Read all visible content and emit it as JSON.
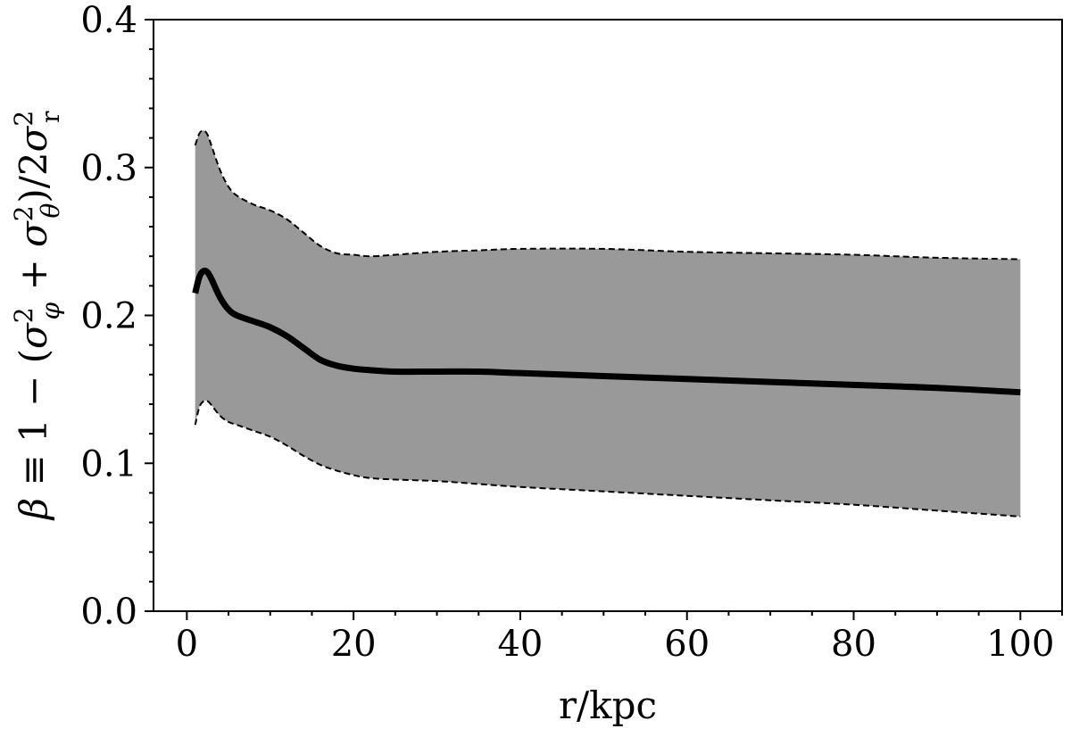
{
  "chart_data": {
    "type": "line",
    "xlabel": "r/kpc",
    "ylabel": "β ≡ 1 − (σ²_φ + σ²_θ)/2σ²_r",
    "xlim": [
      -4,
      105
    ],
    "ylim": [
      0.0,
      0.4
    ],
    "xticks": [
      0,
      20,
      40,
      60,
      80,
      100
    ],
    "xtick_labels": [
      "0",
      "20",
      "40",
      "60",
      "80",
      "100"
    ],
    "yticks": [
      0.0,
      0.1,
      0.2,
      0.3,
      0.4
    ],
    "ytick_labels": [
      "0.0",
      "0.1",
      "0.2",
      "0.3",
      "0.4"
    ],
    "grid": false,
    "band_color": "#999999",
    "line_color": "#000000",
    "series": [
      {
        "style": "solid-thick",
        "x": [
          1,
          1.5,
          2,
          2.5,
          3,
          4,
          5,
          6,
          8,
          10,
          12,
          14,
          16,
          18,
          20,
          22,
          25,
          30,
          35,
          40,
          50,
          60,
          70,
          80,
          90,
          100
        ],
        "y": [
          0.215,
          0.226,
          0.23,
          0.229,
          0.224,
          0.212,
          0.204,
          0.2,
          0.196,
          0.192,
          0.186,
          0.178,
          0.17,
          0.166,
          0.164,
          0.163,
          0.162,
          0.162,
          0.162,
          0.161,
          0.159,
          0.157,
          0.155,
          0.153,
          0.151,
          0.148
        ]
      },
      {
        "style": "dashed-upper",
        "x": [
          1,
          1.5,
          2,
          2.5,
          3,
          4,
          5,
          6,
          8,
          10,
          12,
          14,
          16,
          18,
          20,
          22,
          25,
          30,
          35,
          40,
          50,
          60,
          70,
          80,
          90,
          100
        ],
        "y": [
          0.315,
          0.323,
          0.325,
          0.322,
          0.314,
          0.298,
          0.287,
          0.281,
          0.275,
          0.271,
          0.265,
          0.256,
          0.247,
          0.242,
          0.241,
          0.24,
          0.241,
          0.243,
          0.244,
          0.245,
          0.245,
          0.243,
          0.242,
          0.241,
          0.239,
          0.238
        ]
      },
      {
        "style": "dashed-lower",
        "x": [
          1,
          1.5,
          2,
          2.5,
          3,
          4,
          5,
          6,
          8,
          10,
          12,
          14,
          16,
          18,
          20,
          22,
          25,
          30,
          35,
          40,
          50,
          60,
          70,
          80,
          90,
          100
        ],
        "y": [
          0.126,
          0.138,
          0.142,
          0.142,
          0.139,
          0.132,
          0.128,
          0.126,
          0.122,
          0.118,
          0.112,
          0.105,
          0.099,
          0.095,
          0.092,
          0.09,
          0.089,
          0.088,
          0.086,
          0.084,
          0.081,
          0.078,
          0.075,
          0.072,
          0.068,
          0.064
        ]
      }
    ]
  }
}
